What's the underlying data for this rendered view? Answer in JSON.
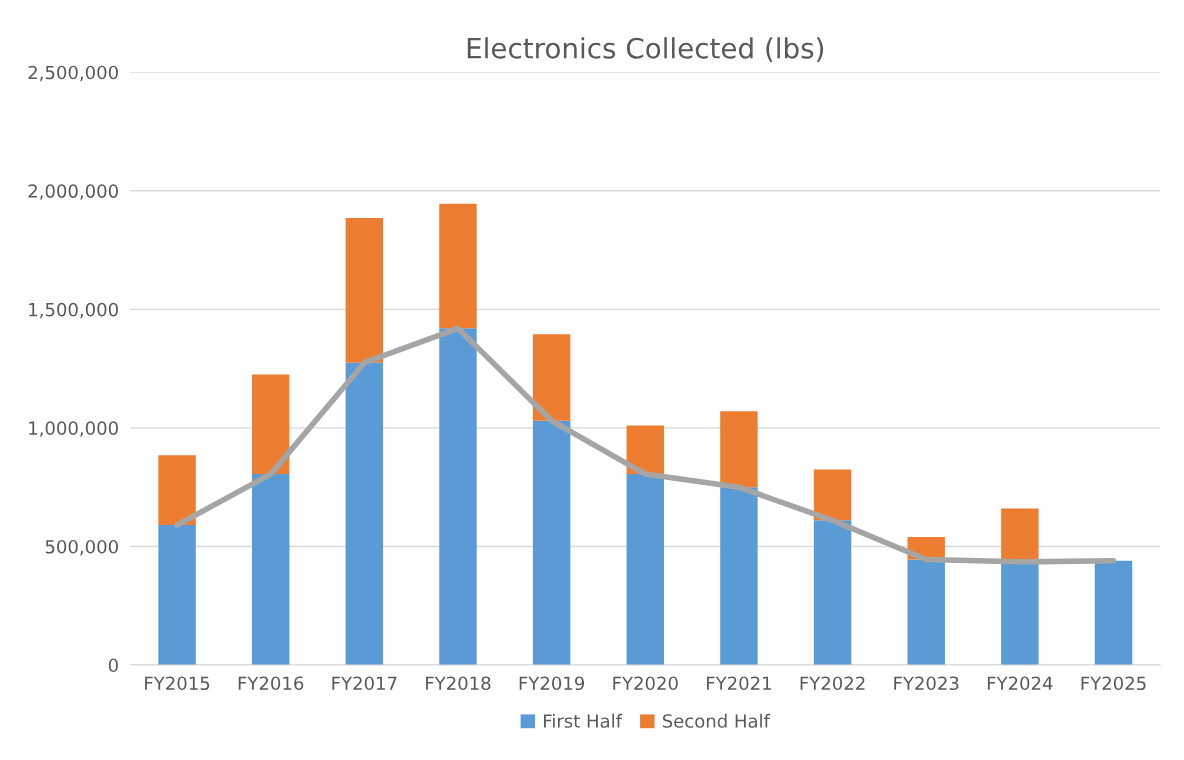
{
  "chart_data": {
    "type": "bar",
    "title": "Electronics Collected (lbs)",
    "categories": [
      "FY2015",
      "FY2016",
      "FY2017",
      "FY2018",
      "FY2019",
      "FY2020",
      "FY2021",
      "FY2022",
      "FY2023",
      "FY2024",
      "FY2025"
    ],
    "stacked": true,
    "series": [
      {
        "name": "First Half",
        "color": "#5b9bd5",
        "values": [
          590000,
          805000,
          1275000,
          1420000,
          1030000,
          805000,
          750000,
          610000,
          445000,
          435000,
          440000
        ]
      },
      {
        "name": "Second Half",
        "color": "#ed7d31",
        "values": [
          295000,
          420000,
          610000,
          525000,
          365000,
          205000,
          320000,
          215000,
          95000,
          225000,
          null
        ]
      },
      {
        "type": "line",
        "color": "#a5a5a5",
        "values": [
          590000,
          805000,
          1275000,
          1420000,
          1030000,
          805000,
          750000,
          610000,
          445000,
          435000,
          440000
        ]
      }
    ],
    "ylim": [
      0,
      2500000
    ],
    "yticks": [
      0,
      {
        "value": 500000,
        "label": "500,000"
      },
      {
        "value": 1000000,
        "label": "1,000,000"
      },
      {
        "value": 1500000,
        "label": "1,500,000"
      },
      {
        "value": 2000000,
        "label": "2,000,000"
      },
      {
        "value": 2500000,
        "label": "2,500,000"
      }
    ],
    "grid": "y",
    "legend": "bottom"
  }
}
